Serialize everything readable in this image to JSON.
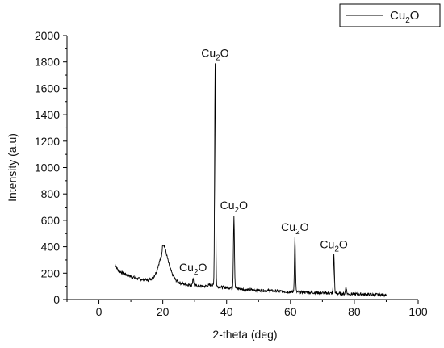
{
  "chart_data": {
    "type": "line",
    "title": "",
    "xlabel": "2-theta (deg)",
    "ylabel": "Intensity (a.u)",
    "xlim": [
      -10,
      100
    ],
    "ylim": [
      0,
      2000
    ],
    "xticks": [
      0,
      20,
      40,
      60,
      80,
      100
    ],
    "yticks": [
      0,
      200,
      400,
      600,
      800,
      1000,
      1200,
      1400,
      1600,
      1800,
      2000
    ],
    "grid": false,
    "legend": {
      "placement": "top-right",
      "entries": [
        {
          "main": "Cu",
          "sub": "2",
          "tail": "O"
        }
      ]
    },
    "line_color": "#000000",
    "series": [
      {
        "baseline": [
          [
            5,
            270
          ],
          [
            6,
            220
          ],
          [
            8,
            195
          ],
          [
            10,
            175
          ],
          [
            12,
            160
          ],
          [
            14,
            150
          ],
          [
            15.5,
            148
          ],
          [
            17,
            165
          ],
          [
            18,
            210
          ],
          [
            19,
            290
          ],
          [
            19.6,
            330
          ],
          [
            20,
            420
          ],
          [
            20.5,
            410
          ],
          [
            21,
            360
          ],
          [
            22,
            260
          ],
          [
            23,
            190
          ],
          [
            24,
            150
          ],
          [
            25,
            130
          ],
          [
            27,
            115
          ],
          [
            30,
            105
          ],
          [
            33,
            100
          ],
          [
            35,
            110
          ],
          [
            38,
            95
          ],
          [
            40,
            90
          ],
          [
            42,
            90
          ],
          [
            45,
            78
          ],
          [
            50,
            70
          ],
          [
            55,
            65
          ],
          [
            60,
            58
          ],
          [
            65,
            55
          ],
          [
            70,
            50
          ],
          [
            75,
            45
          ],
          [
            80,
            42
          ],
          [
            85,
            38
          ],
          [
            90,
            35
          ]
        ],
        "peaks": [
          {
            "x": 29.5,
            "y": 165
          },
          {
            "x": 36.4,
            "y": 1790
          },
          {
            "x": 42.3,
            "y": 635
          },
          {
            "x": 61.4,
            "y": 470
          },
          {
            "x": 73.6,
            "y": 340
          },
          {
            "x": 77.4,
            "y": 100
          }
        ]
      }
    ],
    "annotations": [
      {
        "main": "Cu",
        "sub": "2",
        "tail": "O",
        "x": 29.5,
        "y": 165
      },
      {
        "main": "Cu",
        "sub": "2",
        "tail": "O",
        "x": 36.4,
        "y": 1790
      },
      {
        "main": "Cu",
        "sub": "2",
        "tail": "O",
        "x": 42.3,
        "y": 635
      },
      {
        "main": "Cu",
        "sub": "2",
        "tail": "O",
        "x": 61.4,
        "y": 470
      },
      {
        "main": "Cu",
        "sub": "2",
        "tail": "O",
        "x": 73.6,
        "y": 340
      }
    ]
  }
}
